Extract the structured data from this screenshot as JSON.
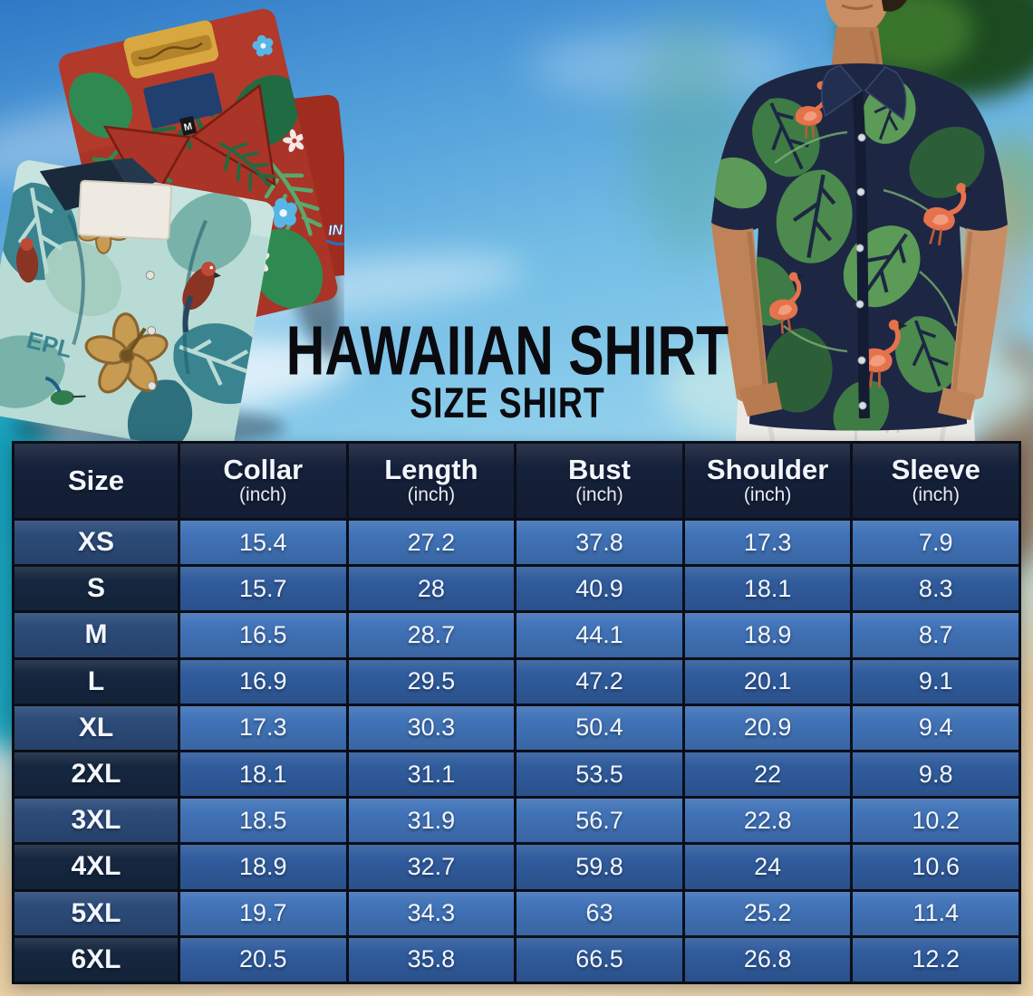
{
  "title": {
    "main": "HAWAIIAN SHIRT",
    "subtitle": "SIZE SHIRT"
  },
  "decor": {
    "red_shirt_size_tag": "M",
    "teal_shirt_print_text": "EPL",
    "red_sleeve_logo_text": "IN"
  },
  "chart_data": {
    "type": "table",
    "title": "HAWAIIAN SHIRT SIZE SHIRT",
    "unit_note": "(inch)",
    "columns": [
      {
        "label": "Size",
        "unit": ""
      },
      {
        "label": "Collar",
        "unit": "(inch)"
      },
      {
        "label": "Length",
        "unit": "(inch)"
      },
      {
        "label": "Bust",
        "unit": "(inch)"
      },
      {
        "label": "Shoulder",
        "unit": "(inch)"
      },
      {
        "label": "Sleeve",
        "unit": "(inch)"
      }
    ],
    "rows": [
      {
        "size": "XS",
        "values": [
          "15.4",
          "27.2",
          "37.8",
          "17.3",
          "7.9"
        ]
      },
      {
        "size": "S",
        "values": [
          "15.7",
          "28",
          "40.9",
          "18.1",
          "8.3"
        ]
      },
      {
        "size": "M",
        "values": [
          "16.5",
          "28.7",
          "44.1",
          "18.9",
          "8.7"
        ]
      },
      {
        "size": "L",
        "values": [
          "16.9",
          "29.5",
          "47.2",
          "20.1",
          "9.1"
        ]
      },
      {
        "size": "XL",
        "values": [
          "17.3",
          "30.3",
          "50.4",
          "20.9",
          "9.4"
        ]
      },
      {
        "size": "2XL",
        "values": [
          "18.1",
          "31.1",
          "53.5",
          "22",
          "9.8"
        ]
      },
      {
        "size": "3XL",
        "values": [
          "18.5",
          "31.9",
          "56.7",
          "22.8",
          "10.2"
        ]
      },
      {
        "size": "4XL",
        "values": [
          "18.9",
          "32.7",
          "59.8",
          "24",
          "10.6"
        ]
      },
      {
        "size": "5XL",
        "values": [
          "19.7",
          "34.3",
          "63",
          "25.2",
          "11.4"
        ]
      },
      {
        "size": "6XL",
        "values": [
          "20.5",
          "35.8",
          "66.5",
          "26.8",
          "12.2"
        ]
      }
    ]
  },
  "colors": {
    "header_bg": "#15213a",
    "size_col_light": "#2c4b79",
    "size_col_dark": "#15273f",
    "value_cell_light": "#4173b8",
    "value_cell_dark": "#305c9d",
    "table_border": "#0a0e18",
    "table_text": "#f3f6fb",
    "title_text": "#0a0a0f",
    "sky": "#7fc4e8",
    "sand": "#ecd2a6",
    "teal_accent": "#0e9ab4"
  }
}
